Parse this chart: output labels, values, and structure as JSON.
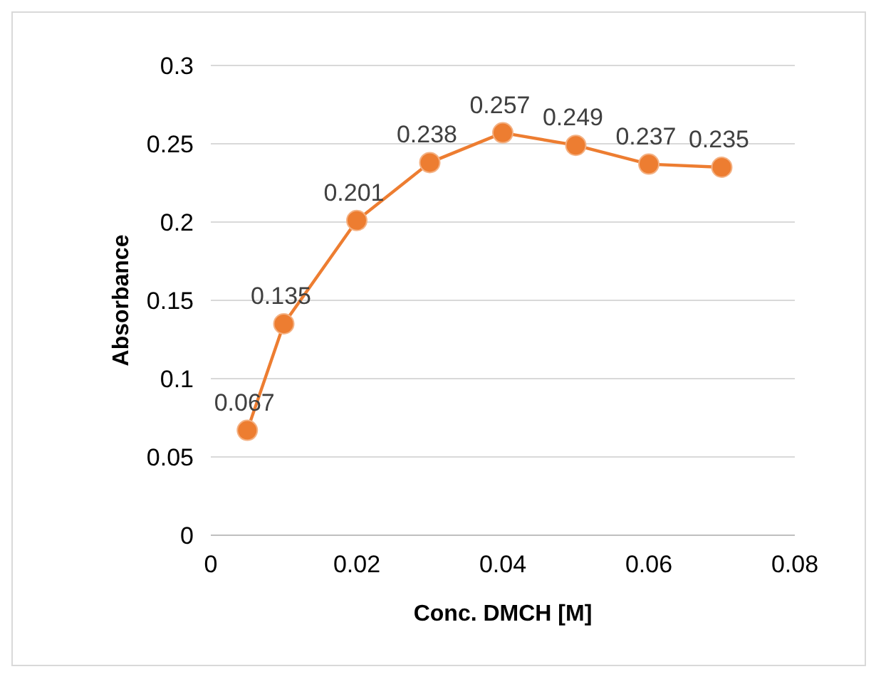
{
  "chart_data": {
    "type": "line",
    "xlabel": "Conc. DMCH [M]",
    "ylabel": "Absorbance",
    "x": [
      0.005,
      0.01,
      0.02,
      0.03,
      0.04,
      0.05,
      0.06,
      0.07
    ],
    "series": [
      {
        "color": "#ed7d31",
        "values": [
          0.067,
          0.135,
          0.201,
          0.238,
          0.257,
          0.249,
          0.237,
          0.235
        ]
      }
    ],
    "xlim": [
      0,
      0.08
    ],
    "xticks": [
      0,
      0.02,
      0.04,
      0.06,
      0.08
    ],
    "ylim": [
      0,
      0.3
    ],
    "yticks": [
      0,
      0.05,
      0.1,
      0.15,
      0.2,
      0.25,
      0.3
    ],
    "grid": "y",
    "marker": "circle",
    "line_style": "solid",
    "data_labels": true
  }
}
